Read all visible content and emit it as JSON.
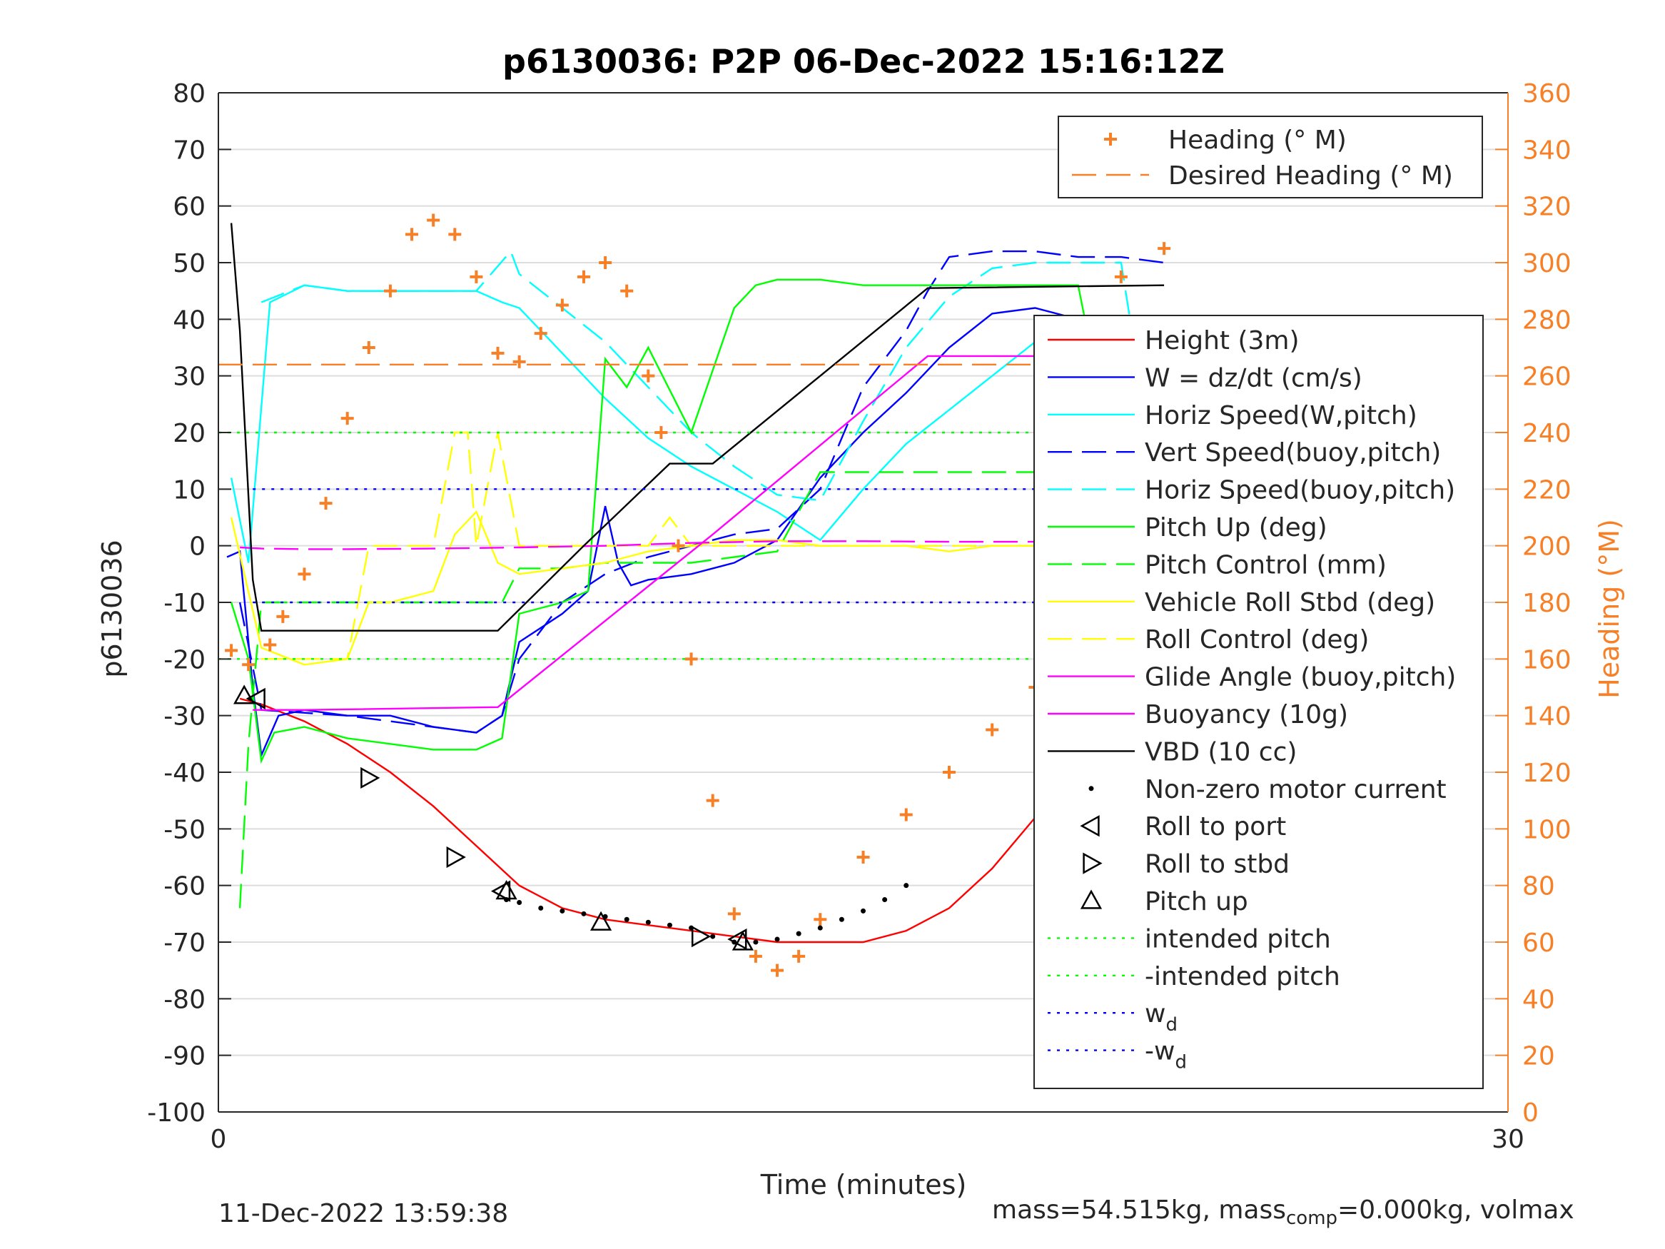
{
  "chart_data": {
    "type": "line",
    "title": "p6130036: P2P 06-Dec-2022 15:16:12Z",
    "xlabel": "Time (minutes)",
    "ylabel": "p6130036",
    "y2label": "Heading (°M)",
    "xlim": [
      0,
      30
    ],
    "ylim": [
      -100,
      80
    ],
    "y2lim": [
      0,
      360
    ],
    "xticks": [
      "0",
      "30"
    ],
    "yticks": [
      "80",
      "70",
      "60",
      "50",
      "40",
      "30",
      "20",
      "10",
      "0",
      "-10",
      "-20",
      "-30",
      "-40",
      "-50",
      "-60",
      "-70",
      "-80",
      "-90",
      "-100"
    ],
    "y2ticks": [
      "360",
      "340",
      "320",
      "300",
      "280",
      "260",
      "240",
      "220",
      "200",
      "180",
      "160",
      "140",
      "120",
      "100",
      "80",
      "60",
      "40",
      "20",
      "0"
    ],
    "grid": true,
    "colors": {
      "axis": "#262626",
      "right_axis": "#f77f26",
      "grid": "#dddddd"
    },
    "legend_right_axis": [
      {
        "label": "Heading (° M)",
        "color": "#f77f26",
        "style": "plus"
      },
      {
        "label": "Desired Heading (° M)",
        "color": "#f77f26",
        "style": "dashed"
      }
    ],
    "legend_main": [
      {
        "label": "Height (3m)",
        "color": "#ff0000",
        "style": "solid"
      },
      {
        "label": "W = dz/dt (cm/s)",
        "color": "#0000ff",
        "style": "solid"
      },
      {
        "label": "Horiz Speed(W,pitch)",
        "color": "#00ffff",
        "style": "solid"
      },
      {
        "label": "Vert Speed(buoy,pitch)",
        "color": "#0000ff",
        "style": "dashed"
      },
      {
        "label": "Horiz Speed(buoy,pitch)",
        "color": "#00ffff",
        "style": "dashed"
      },
      {
        "label": "Pitch Up (deg)",
        "color": "#00ff00",
        "style": "solid"
      },
      {
        "label": "Pitch Control (mm)",
        "color": "#00ff00",
        "style": "dashed"
      },
      {
        "label": "Vehicle Roll Stbd (deg)",
        "color": "#ffff00",
        "style": "solid"
      },
      {
        "label": "Roll Control (deg)",
        "color": "#ffff00",
        "style": "dashed"
      },
      {
        "label": "Glide Angle (buoy,pitch)",
        "color": "#ff00ff",
        "style": "solid"
      },
      {
        "label": "Buoyancy (10g)",
        "color": "#ff00ff",
        "style": "solid"
      },
      {
        "label": "VBD (10 cc)",
        "color": "#000000",
        "style": "solid"
      },
      {
        "label": "Non-zero motor current",
        "color": "#000000",
        "style": "dot"
      },
      {
        "label": "Roll to port",
        "color": "#000000",
        "style": "tri-left"
      },
      {
        "label": "Roll to stbd",
        "color": "#000000",
        "style": "tri-right"
      },
      {
        "label": "Pitch up",
        "color": "#000000",
        "style": "tri-up"
      },
      {
        "label": "intended pitch",
        "color": "#00ff00",
        "style": "dotted"
      },
      {
        "label": "-intended pitch",
        "color": "#00ff00",
        "style": "dotted"
      },
      {
        "label": "w",
        "sub": "d",
        "color": "#0000ff",
        "style": "dotted"
      },
      {
        "label": "-w",
        "sub": "d",
        "color": "#0000ff",
        "style": "dotted"
      }
    ],
    "series": [
      {
        "name": "Height (3m)",
        "color": "#ff0000",
        "dash": "",
        "x": [
          0.5,
          1,
          2,
          3,
          4,
          5,
          6,
          7,
          8,
          9,
          10,
          11,
          12,
          13,
          14,
          15,
          16,
          17,
          18,
          19,
          20,
          21,
          22
        ],
        "y": [
          -27,
          -28,
          -31,
          -35,
          -40,
          -46,
          -53,
          -60,
          -64,
          -66,
          -67,
          -68,
          -69,
          -70,
          -70,
          -70,
          -68,
          -64,
          -57,
          -48,
          -40,
          -32,
          -26.5
        ]
      },
      {
        "name": "W = dz/dt (cm/s)",
        "color": "#0000ff",
        "dash": "",
        "x": [
          0.2,
          0.5,
          0.8,
          1.0,
          1.4,
          2,
          3,
          4,
          5,
          6,
          6.6,
          7,
          8,
          8.6,
          9,
          9.3,
          9.6,
          10,
          11,
          12,
          13,
          14,
          15,
          16,
          17,
          18,
          19,
          20,
          21,
          22
        ],
        "y": [
          -2,
          -1,
          -25,
          -37,
          -30,
          -29,
          -30,
          -30,
          -32,
          -33,
          -30,
          -17,
          -12,
          -8,
          7,
          -3,
          -7,
          -6,
          -5,
          -3,
          1,
          12,
          20,
          27,
          35,
          41,
          42,
          40,
          40,
          1
        ]
      },
      {
        "name": "Horiz Speed(W,pitch)",
        "color": "#00ffff",
        "dash": "",
        "x": [
          0.3,
          0.7,
          1.2,
          2,
          3,
          4,
          5,
          6,
          6.6,
          7,
          8,
          9,
          10,
          11,
          12,
          13,
          14,
          15,
          16,
          17,
          18,
          19,
          20,
          21,
          22
        ],
        "y": [
          12,
          -3,
          43,
          46,
          45,
          45,
          45,
          45,
          43,
          42,
          34,
          26,
          19,
          14,
          10,
          6,
          1,
          10,
          18,
          24,
          30,
          36,
          38,
          38,
          25
        ]
      },
      {
        "name": "Vert Speed(buoy,pitch)",
        "color": "#0000ff",
        "dash": "34 14",
        "x": [
          0.5,
          1,
          3,
          6,
          6.6,
          7,
          8,
          9,
          10,
          11,
          12,
          13,
          14,
          15,
          16,
          16.5,
          17,
          18,
          19,
          20,
          21,
          22
        ],
        "y": [
          -10,
          -29,
          -30,
          -33,
          -30,
          -20,
          -10,
          -5,
          -2,
          0,
          2,
          3,
          10,
          28,
          38,
          45,
          51,
          52,
          52,
          51,
          51,
          50
        ]
      },
      {
        "name": "Horiz Speed(buoy,pitch)",
        "color": "#00ffff",
        "dash": "34 14",
        "x": [
          1,
          2,
          3,
          6,
          6.8,
          7,
          8,
          9,
          10,
          11,
          12,
          13,
          14,
          15,
          16,
          17,
          18,
          19,
          20,
          21,
          22
        ],
        "y": [
          43,
          46,
          45,
          45,
          52,
          48,
          42,
          36,
          28,
          20,
          14,
          9,
          8,
          22,
          35,
          44,
          49,
          50,
          50,
          50,
          2
        ]
      },
      {
        "name": "Pitch Up (deg)",
        "color": "#00ff00",
        "dash": "",
        "x": [
          0.3,
          0.7,
          1.0,
          1.3,
          2,
          3,
          4,
          5,
          6,
          6.6,
          7,
          8,
          8.6,
          9,
          9.5,
          10,
          11,
          12,
          12.5,
          13,
          14,
          15,
          16,
          17,
          18,
          19,
          20,
          21,
          22
        ],
        "y": [
          -10,
          -20,
          -38,
          -33,
          -32,
          -34,
          -35,
          -36,
          -36,
          -34,
          -12,
          -10,
          -8,
          33,
          28,
          35,
          20,
          42,
          46,
          47,
          47,
          46,
          46,
          46,
          46,
          46,
          46,
          8,
          8
        ]
      },
      {
        "name": "Pitch Control (mm)",
        "color": "#00ff00",
        "dash": "34 14",
        "x": [
          0.5,
          0.7,
          1,
          2,
          6,
          6.6,
          7,
          8,
          9,
          10,
          11,
          12,
          13,
          14,
          15,
          16,
          17,
          18,
          19,
          20,
          21,
          22
        ],
        "y": [
          -64,
          -35,
          -10,
          -10,
          -10,
          -10,
          -4,
          -4,
          -3,
          -3,
          -3,
          -2,
          -1,
          13,
          13,
          13,
          13,
          13,
          13,
          13,
          13,
          13
        ]
      },
      {
        "name": "Vehicle Roll Stbd (deg)",
        "color": "#ffff00",
        "dash": "",
        "x": [
          0.3,
          1,
          2,
          3,
          3.5,
          4,
          5,
          5.5,
          6,
          6.5,
          7,
          8,
          9,
          10,
          11,
          12,
          13,
          14,
          15,
          16,
          17,
          18,
          19,
          20,
          21,
          22
        ],
        "y": [
          5,
          -18,
          -21,
          -20,
          -10,
          -10,
          -8,
          2,
          6,
          -3,
          -5,
          -4,
          -3,
          -1,
          0,
          1,
          1,
          0,
          0,
          0,
          -1,
          0,
          0,
          0,
          5,
          5
        ]
      },
      {
        "name": "Roll Control (deg)",
        "color": "#ffff00",
        "dash": "34 14",
        "x": [
          1,
          2,
          3,
          3.5,
          4,
          5,
          5.5,
          5.8,
          6,
          6.5,
          7,
          8,
          9,
          10,
          10.5,
          11,
          12,
          13,
          14,
          15,
          16,
          17,
          18,
          19,
          19.5,
          20,
          21,
          22
        ],
        "y": [
          -20,
          -20,
          -20,
          0,
          0,
          0,
          20,
          20,
          0,
          20,
          0,
          0,
          0,
          0,
          5,
          0,
          0,
          0,
          0,
          0,
          0,
          0,
          0,
          0,
          20,
          0,
          0,
          0
        ]
      },
      {
        "name": "Glide Angle (buoy,pitch)",
        "color": "#ff00ff",
        "dash": "34 14",
        "x": [
          0.5,
          1,
          2,
          3,
          5,
          7,
          9,
          11,
          13,
          15,
          17,
          19,
          21,
          22
        ],
        "y": [
          -0.3,
          -0.5,
          -0.6,
          -0.6,
          -0.5,
          -0.3,
          0,
          0.5,
          0.8,
          0.8,
          0.7,
          0.7,
          0.6,
          0.6
        ]
      },
      {
        "name": "Buoyancy (10g)",
        "color": "#ff00ff",
        "dash": "",
        "x": [
          0.8,
          2,
          6.5,
          11.5,
          16.5,
          22
        ],
        "y": [
          -29,
          -29,
          -28.5,
          2,
          33.5,
          33.5
        ]
      },
      {
        "name": "VBD (10 cc)",
        "color": "#000000",
        "dash": "",
        "x": [
          0.3,
          0.5,
          0.8,
          1.0,
          6.5,
          8.5,
          10.5,
          11.5,
          16.5,
          22
        ],
        "y": [
          57,
          38,
          -6,
          -15,
          -15,
          0,
          14.5,
          14.5,
          45.5,
          46
        ]
      },
      {
        "name": "intended pitch",
        "color": "#00ff00",
        "dash": "4 9",
        "x": [
          0,
          22
        ],
        "y": [
          20,
          20
        ]
      },
      {
        "name": "-intended pitch",
        "color": "#00ff00",
        "dash": "4 9",
        "x": [
          0,
          22
        ],
        "y": [
          -20,
          -20
        ]
      },
      {
        "name": "w_d",
        "color": "#0000ff",
        "dash": "4 9",
        "x": [
          0.8,
          22
        ],
        "y": [
          10,
          10
        ]
      },
      {
        "name": "-w_d",
        "color": "#0000ff",
        "dash": "4 9",
        "x": [
          0.8,
          22
        ],
        "y": [
          -10,
          -10
        ]
      }
    ],
    "right_axis_series": [
      {
        "name": "Desired Heading (° M)",
        "color": "#f77f26",
        "dash": "34 14",
        "x": [
          0,
          22
        ],
        "y": [
          264,
          264
        ]
      },
      {
        "name": "Heading (° M)",
        "color": "#f77f26",
        "marker": "plus",
        "x": [
          0.3,
          0.7,
          1.2,
          1.5,
          2,
          2.5,
          3,
          3.5,
          4,
          4.5,
          5,
          5.5,
          6,
          6.5,
          7,
          7.5,
          8,
          8.5,
          9,
          9.5,
          10,
          10.3,
          10.7,
          11,
          11.5,
          12,
          12.5,
          13,
          13.5,
          14,
          15,
          16,
          17,
          18,
          19,
          20,
          21,
          22
        ],
        "y": [
          163,
          158,
          165,
          175,
          190,
          215,
          245,
          270,
          290,
          310,
          315,
          310,
          295,
          268,
          265,
          275,
          285,
          295,
          300,
          290,
          260,
          240,
          200,
          160,
          110,
          70,
          55,
          50,
          55,
          68,
          90,
          105,
          120,
          135,
          150,
          180,
          295,
          305
        ]
      },
      {
        "name": "Non-zero motor current",
        "color": "#000000",
        "marker": "dot",
        "x": [
          6.7,
          7,
          7.5,
          8,
          8.5,
          9,
          9.5,
          10,
          10.5,
          11,
          11.5,
          12,
          12.5,
          13,
          13.5,
          14,
          14.5,
          15,
          15.5,
          16
        ],
        "y": [
          75,
          74,
          72,
          71,
          70,
          69,
          68,
          67,
          66,
          65,
          62,
          60,
          60,
          61,
          63,
          65,
          68,
          71,
          75,
          80
        ]
      }
    ],
    "markers": [
      {
        "type": "tri-up",
        "x": 0.6,
        "y": -26.5
      },
      {
        "type": "tri-left",
        "x": 0.9,
        "y": -27
      },
      {
        "type": "tri-right",
        "x": 3.5,
        "y": -41
      },
      {
        "type": "tri-right",
        "x": 5.5,
        "y": -55
      },
      {
        "type": "tri-left",
        "x": 6.6,
        "y": -61
      },
      {
        "type": "tri-up",
        "x": 6.7,
        "y": -61
      },
      {
        "type": "tri-up",
        "x": 8.9,
        "y": -66.5
      },
      {
        "type": "tri-right",
        "x": 11.2,
        "y": -69
      },
      {
        "type": "tri-left",
        "x": 12.1,
        "y": -69.5
      },
      {
        "type": "tri-up",
        "x": 12.2,
        "y": -70
      },
      {
        "type": "tri-right",
        "x": 19.2,
        "y": -31
      },
      {
        "type": "tri-left",
        "x": 19.9,
        "y": -26
      }
    ]
  },
  "footer": {
    "timestamp": "11-Dec-2022 13:59:38",
    "mass_text_1": "mass=54.515kg, mass",
    "mass_sub": "comp",
    "mass_text_2": "=0.000kg, volmax"
  }
}
